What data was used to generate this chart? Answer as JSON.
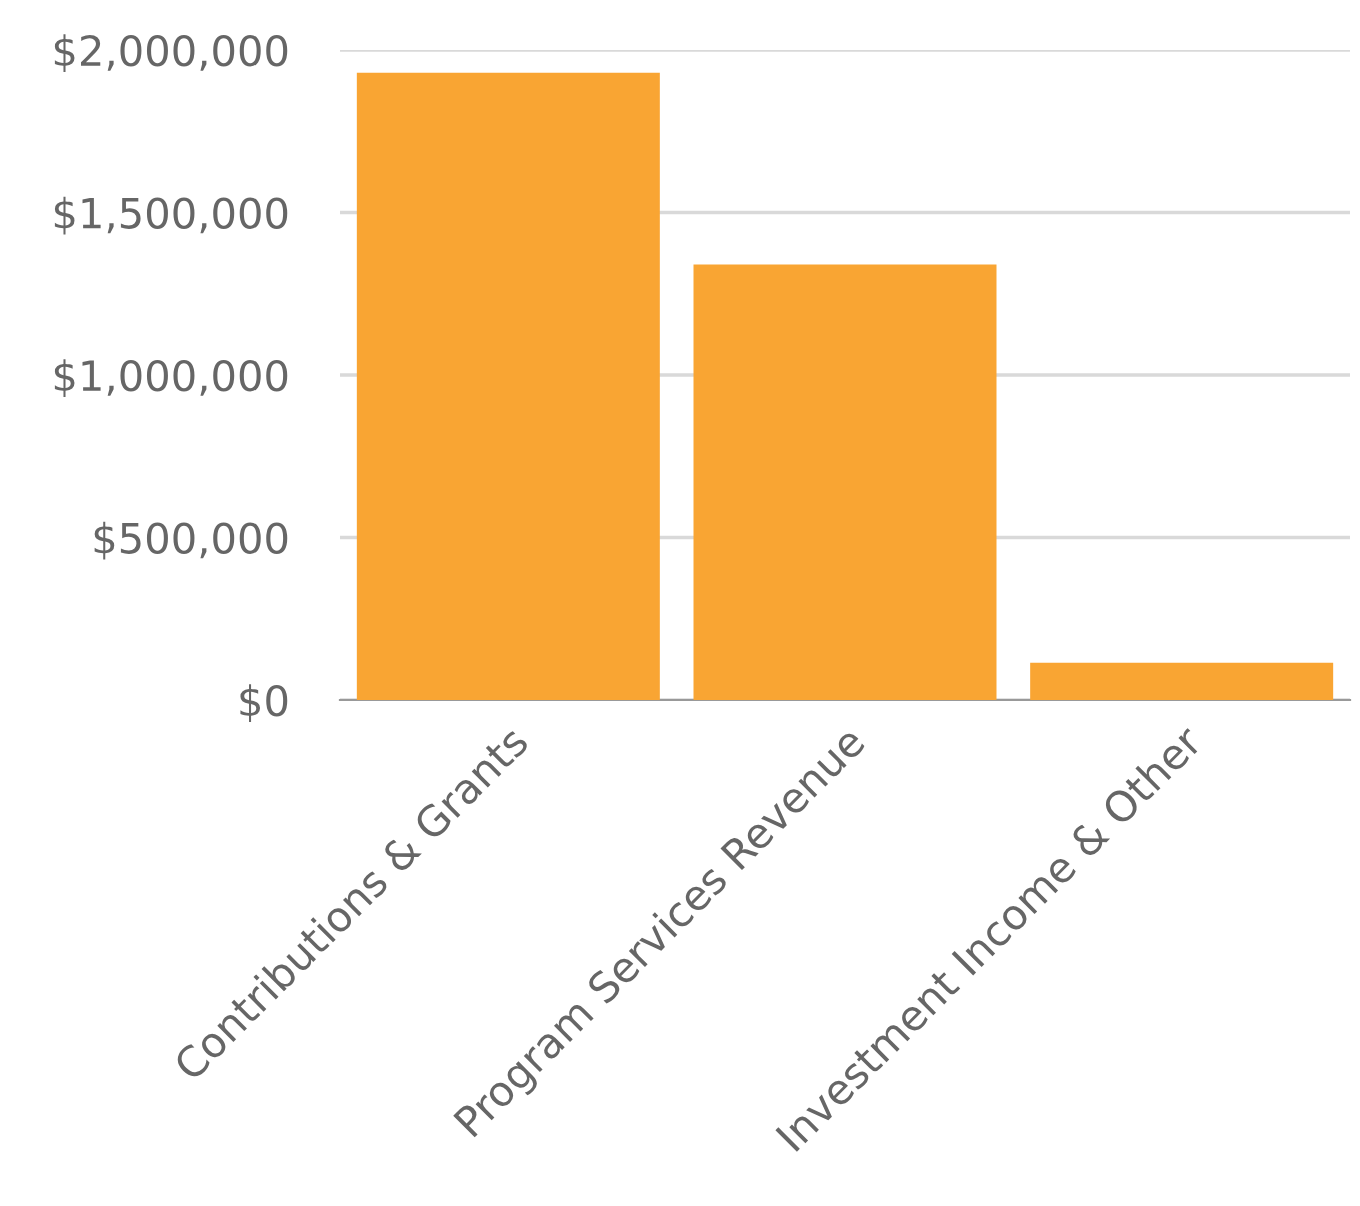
{
  "chart_data": {
    "type": "bar",
    "categories": [
      "Contributions & Grants",
      "Program Services Revenue",
      "Investment Income & Other"
    ],
    "values": [
      1930000,
      1340000,
      115000
    ],
    "color": "#f9a533",
    "ylim": [
      0,
      2000000
    ],
    "yticks": [
      {
        "value": 0,
        "label": "$0"
      },
      {
        "value": 500000,
        "label": "$500,000"
      },
      {
        "value": 1000000,
        "label": "$1,000,000"
      },
      {
        "value": 1500000,
        "label": "$1,500,000"
      },
      {
        "value": 2000000,
        "label": "$2,000,000"
      }
    ],
    "grid": "y",
    "legend": false
  }
}
